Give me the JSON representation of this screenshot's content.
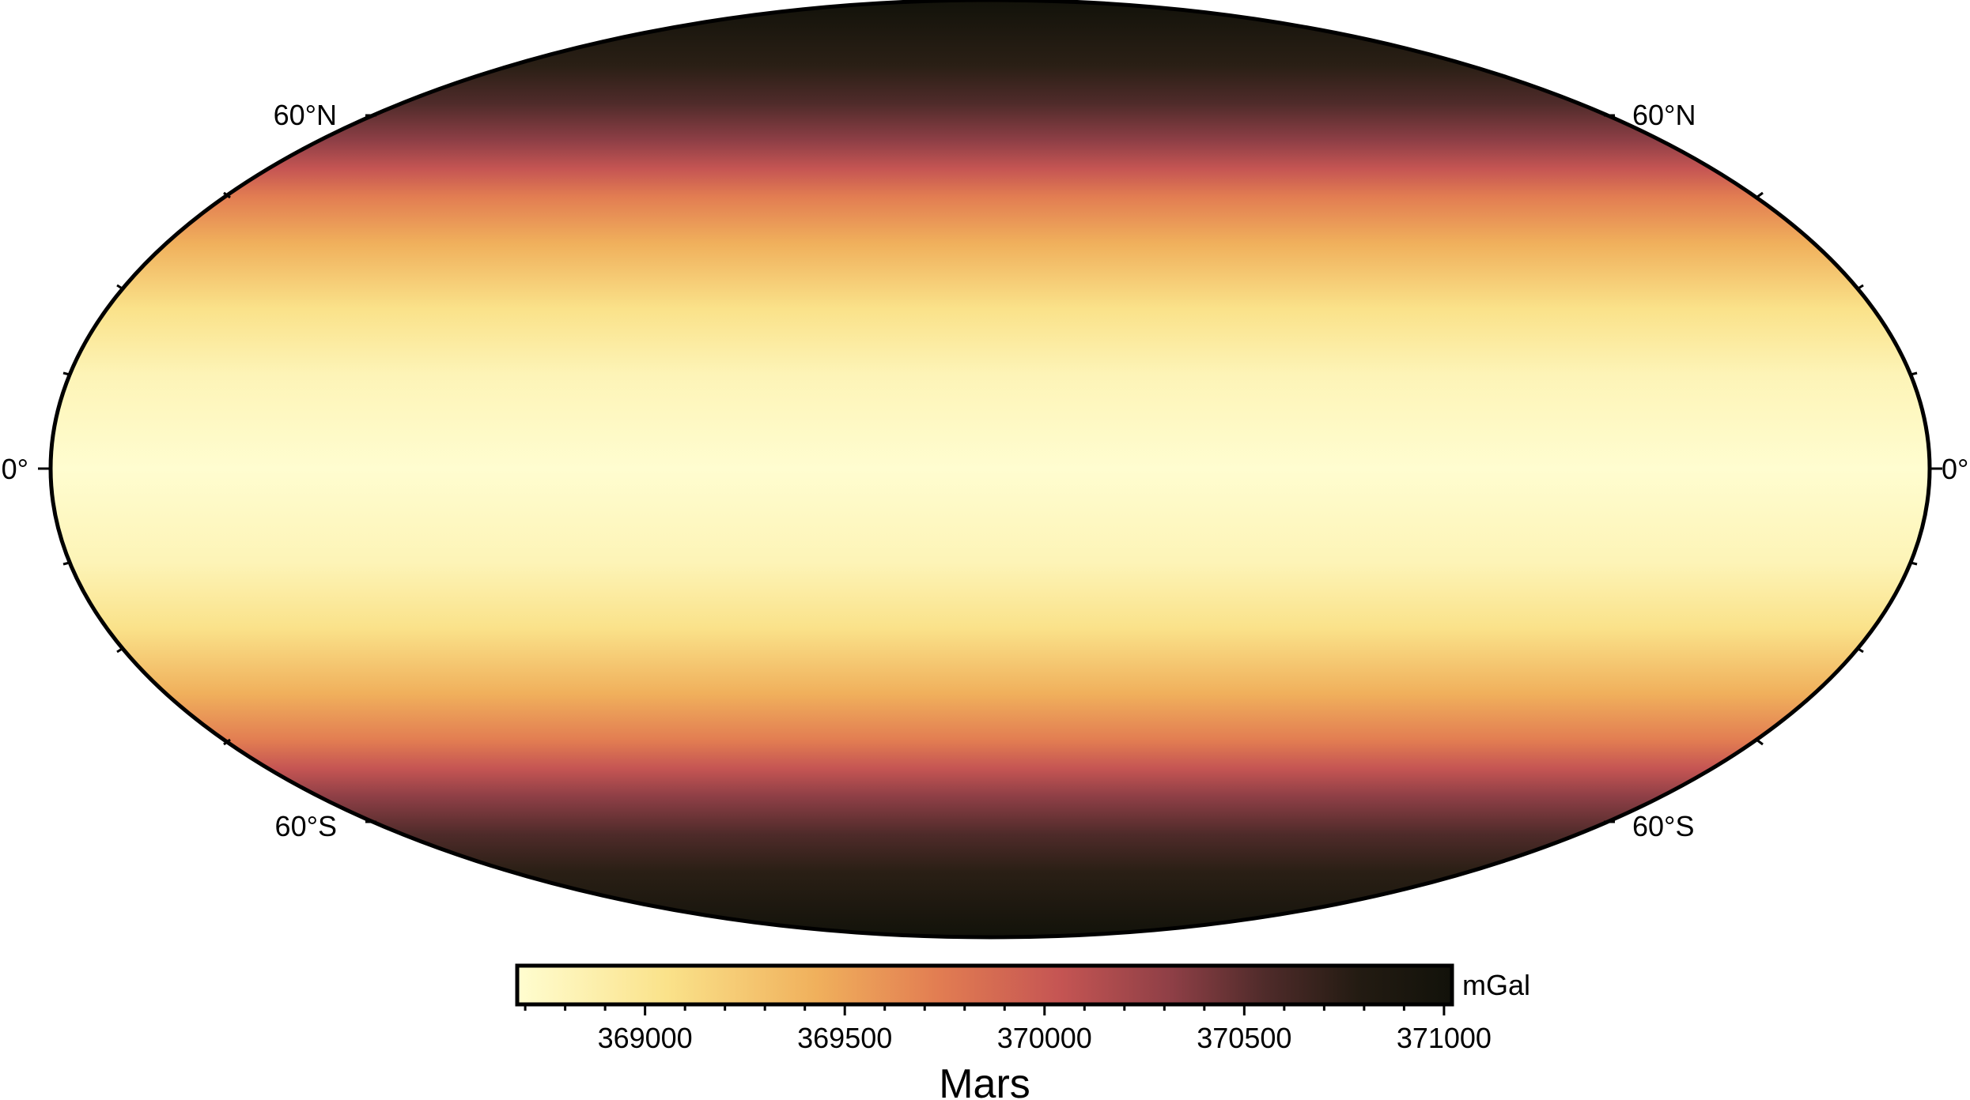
{
  "map": {
    "projection": "mollweide",
    "field": "uniform latitude-dependent gravity",
    "latitude_labels": {
      "left": [
        "60°N",
        "0°",
        "60°S"
      ],
      "right": [
        "60°N",
        "0°",
        "60°S"
      ]
    },
    "colormap": [
      "#fffdd0",
      "#fae28a",
      "#f0b05c",
      "#e27d52",
      "#c55553",
      "#8e3f46",
      "#4f2b2a",
      "#231b12",
      "#12120a"
    ]
  },
  "colorbar": {
    "title": "Mars",
    "unit": "mGal",
    "range": [
      368680,
      371020
    ],
    "tick_labels": [
      "369000",
      "369500",
      "370000",
      "370500",
      "371000"
    ],
    "tick_values": [
      369000,
      369500,
      370000,
      370500,
      371000
    ]
  }
}
